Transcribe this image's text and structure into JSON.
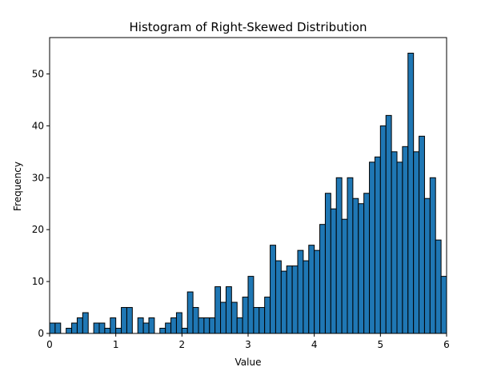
{
  "chart_data": {
    "type": "bar",
    "title": "Histogram of Right-Skewed Distribution",
    "xlabel": "Value",
    "ylabel": "Frequency",
    "xlim": [
      0,
      6
    ],
    "ylim": [
      0,
      57
    ],
    "x_ticks": [
      0,
      1,
      2,
      3,
      4,
      5,
      6
    ],
    "y_ticks": [
      0,
      10,
      20,
      30,
      40,
      50
    ],
    "bin_width": 0.0811,
    "bar_color": "#1f77b4",
    "edge_color": "#000000",
    "grid": false,
    "legend": "none",
    "values": [
      2,
      2,
      0,
      1,
      2,
      3,
      4,
      0,
      2,
      2,
      1,
      3,
      1,
      5,
      5,
      0,
      3,
      2,
      3,
      0,
      1,
      2,
      3,
      4,
      1,
      8,
      5,
      3,
      3,
      3,
      9,
      6,
      9,
      6,
      3,
      7,
      11,
      5,
      5,
      7,
      17,
      14,
      12,
      13,
      13,
      16,
      14,
      17,
      16,
      21,
      27,
      24,
      30,
      22,
      30,
      26,
      25,
      27,
      33,
      34,
      40,
      42,
      35,
      33,
      36,
      54,
      35,
      38,
      26,
      30,
      18,
      11
    ]
  }
}
